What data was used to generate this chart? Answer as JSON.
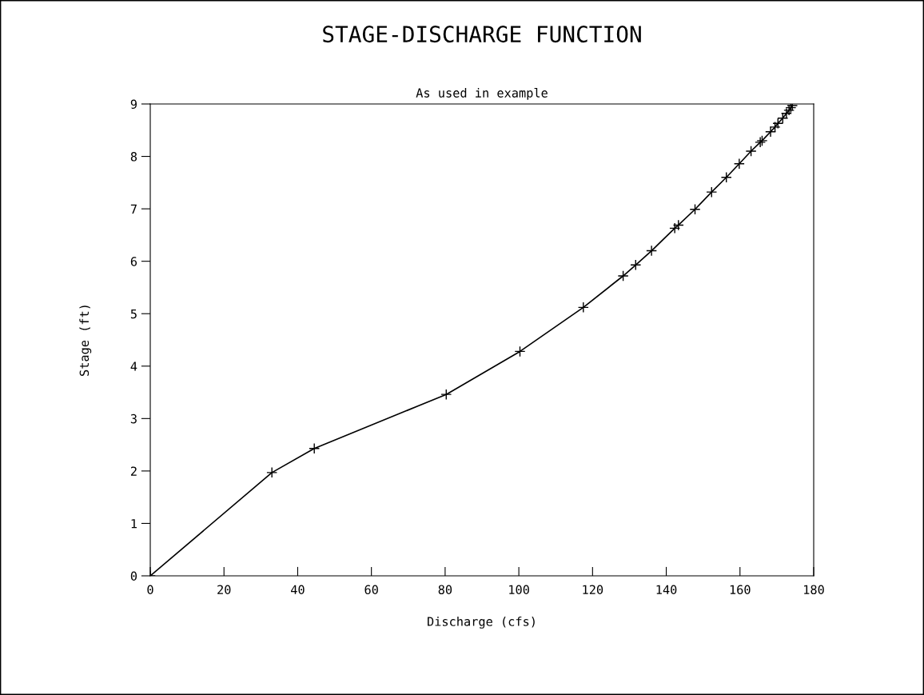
{
  "chart_data": {
    "type": "line",
    "title": "STAGE-DISCHARGE FUNCTION",
    "subtitle": "As used in example",
    "xlabel": "Discharge (cfs)",
    "ylabel": "Stage (ft)",
    "x": [
      0,
      33,
      44.5,
      80.3,
      100.3,
      117.5,
      128.3,
      131.7,
      136,
      142.3,
      143.3,
      147.8,
      152.3,
      156.3,
      159.8,
      163,
      165.5,
      166,
      168.3,
      169.5,
      170.3,
      171.6,
      172.6,
      173.3,
      173.8,
      174.2
    ],
    "series": [
      {
        "color": "#000000",
        "values": [
          0,
          1.97,
          2.43,
          3.46,
          4.28,
          5.12,
          5.72,
          5.93,
          6.2,
          6.63,
          6.69,
          6.99,
          7.32,
          7.6,
          7.86,
          8.1,
          8.27,
          8.3,
          8.47,
          8.56,
          8.63,
          8.73,
          8.82,
          8.88,
          8.93,
          8.97
        ]
      }
    ],
    "xlim": [
      0,
      180
    ],
    "ylim": [
      0,
      9
    ],
    "xticks": [
      0,
      20,
      40,
      60,
      80,
      100,
      120,
      140,
      160,
      180
    ],
    "yticks": [
      0,
      1,
      2,
      3,
      4,
      5,
      6,
      7,
      8,
      9
    ],
    "marker": "cross",
    "line_style": "solid",
    "grid": false,
    "legend": false
  }
}
